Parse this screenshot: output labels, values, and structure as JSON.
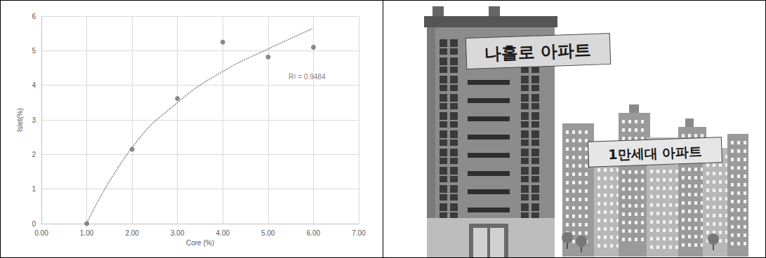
{
  "chart_data": {
    "type": "scatter",
    "x_label": "Core (%)",
    "y_label": "Islet(%)",
    "x": [
      1,
      2,
      3,
      4,
      5,
      6
    ],
    "values": [
      0,
      2.15,
      3.62,
      5.25,
      4.82,
      5.1
    ],
    "color": "#6f6f6f",
    "marker": "circle",
    "trendline": {
      "x": [
        1,
        2,
        3,
        4,
        5,
        6
      ],
      "values": [
        0.02,
        2.2,
        3.5,
        4.4,
        5.05,
        5.65
      ],
      "line_style": "dotted",
      "color": "#6f6f6f"
    },
    "annotation": {
      "text": "R² = 0.9484",
      "x": 5.45,
      "y": 4.25
    },
    "xlim": [
      0,
      7
    ],
    "xticks": [
      {
        "value": 0,
        "label": "0.00"
      },
      {
        "value": 1,
        "label": "1.00"
      },
      {
        "value": 2,
        "label": "2.00"
      },
      {
        "value": 3,
        "label": "3.00"
      },
      {
        "value": 4,
        "label": "4.00"
      },
      {
        "value": 5,
        "label": "5.00"
      },
      {
        "value": 6,
        "label": "6.00"
      },
      {
        "value": 7,
        "label": "7.00"
      }
    ],
    "ylim": [
      0,
      6
    ],
    "yticks": [
      0,
      1,
      2,
      3,
      4,
      5,
      6
    ],
    "grid": true
  },
  "illustration": {
    "tall_building_label": "나홀로 아파트",
    "complex_label": "1만세대 아파트"
  }
}
